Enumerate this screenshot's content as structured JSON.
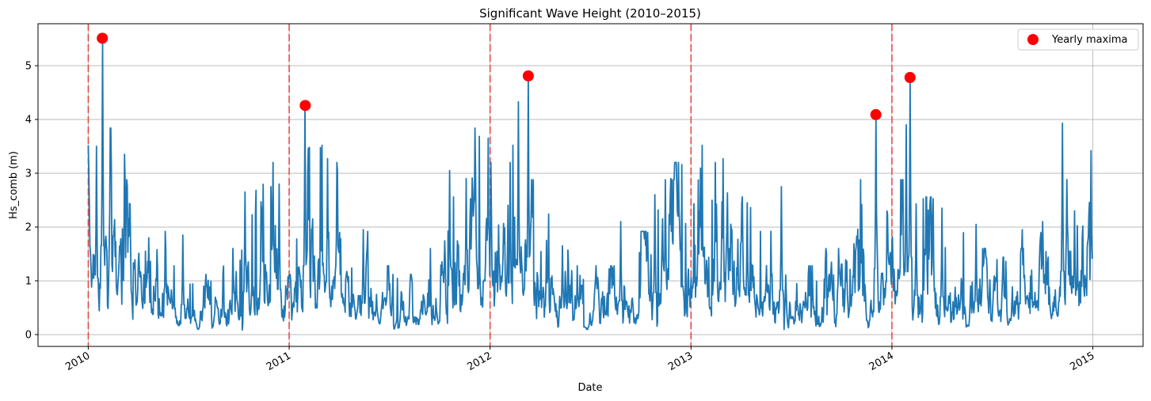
{
  "chart_data": {
    "type": "line",
    "title": "Significant Wave Height (2010–2015)",
    "xlabel": "Date",
    "ylabel": "Hs_comb (m)",
    "xlim": [
      2009.75,
      2015.25
    ],
    "ylim": [
      -0.22,
      5.78
    ],
    "grid": true,
    "legend_position": "top-right",
    "x_ticks": [
      2010,
      2011,
      2012,
      2013,
      2014,
      2015
    ],
    "x_tick_labels": [
      "2010",
      "2011",
      "2012",
      "2013",
      "2014",
      "2015"
    ],
    "y_ticks": [
      0,
      1,
      2,
      3,
      4,
      5
    ],
    "y_tick_labels": [
      "0",
      "1",
      "2",
      "3",
      "4",
      "5"
    ],
    "year_boundaries": [
      2010,
      2011,
      2012,
      2013,
      2014
    ],
    "series": [
      {
        "name": "Hs_comb",
        "color": "#1f77b4",
        "monthly_typical_level": [
          1.1,
          1.2,
          0.9,
          0.7,
          0.6,
          0.4,
          0.3,
          0.35,
          0.5,
          0.7,
          0.9,
          1.0,
          0.8,
          1.1,
          1.0,
          0.7,
          0.6,
          0.4,
          0.35,
          0.35,
          0.5,
          0.8,
          1.1,
          1.2,
          1.0,
          1.1,
          0.9,
          0.7,
          0.6,
          0.4,
          0.4,
          0.4,
          0.5,
          0.6,
          0.9,
          1.0,
          1.1,
          1.0,
          0.9,
          0.8,
          0.6,
          0.4,
          0.35,
          0.4,
          0.5,
          0.7,
          0.9,
          1.0,
          0.9,
          0.9,
          0.8,
          0.7,
          0.6,
          0.5,
          0.45,
          0.5,
          0.6,
          0.7,
          0.9,
          1.1
        ],
        "notable_peaks": [
          [
            2010.04,
            3.5
          ],
          [
            2010.07,
            5.51
          ],
          [
            2010.18,
            3.35
          ],
          [
            2010.3,
            1.8
          ],
          [
            2010.47,
            1.85
          ],
          [
            2010.78,
            2.65
          ],
          [
            2010.95,
            2.8
          ],
          [
            2011.08,
            4.26
          ],
          [
            2011.19,
            3.27
          ],
          [
            2011.37,
            1.95
          ],
          [
            2011.8,
            3.05
          ],
          [
            2011.88,
            2.9
          ],
          [
            2011.99,
            3.65
          ],
          [
            2012.1,
            3.2
          ],
          [
            2012.14,
            4.33
          ],
          [
            2012.19,
            4.81
          ],
          [
            2012.28,
            1.75
          ],
          [
            2012.36,
            1.65
          ],
          [
            2012.65,
            2.1
          ],
          [
            2012.82,
            2.6
          ],
          [
            2012.9,
            2.9
          ],
          [
            2013.16,
            3.27
          ],
          [
            2013.28,
            2.45
          ],
          [
            2013.45,
            2.75
          ],
          [
            2013.85,
            2.42
          ],
          [
            2013.92,
            4.09
          ],
          [
            2014.07,
            3.9
          ],
          [
            2014.09,
            4.78
          ],
          [
            2014.12,
            2.43
          ],
          [
            2014.25,
            2.35
          ],
          [
            2014.42,
            2.05
          ],
          [
            2014.65,
            1.95
          ],
          [
            2014.75,
            2.1
          ],
          [
            2014.85,
            3.93
          ],
          [
            2014.91,
            2.3
          ],
          [
            2014.99,
            3.42
          ]
        ]
      }
    ],
    "yearly_maxima": {
      "name": "Yearly maxima",
      "color": "#ff0000",
      "points": [
        [
          2010.07,
          5.51
        ],
        [
          2011.08,
          4.26
        ],
        [
          2012.19,
          4.81
        ],
        [
          2013.92,
          4.09
        ],
        [
          2014.09,
          4.78
        ]
      ]
    },
    "boundary_color": "#e8413a"
  }
}
